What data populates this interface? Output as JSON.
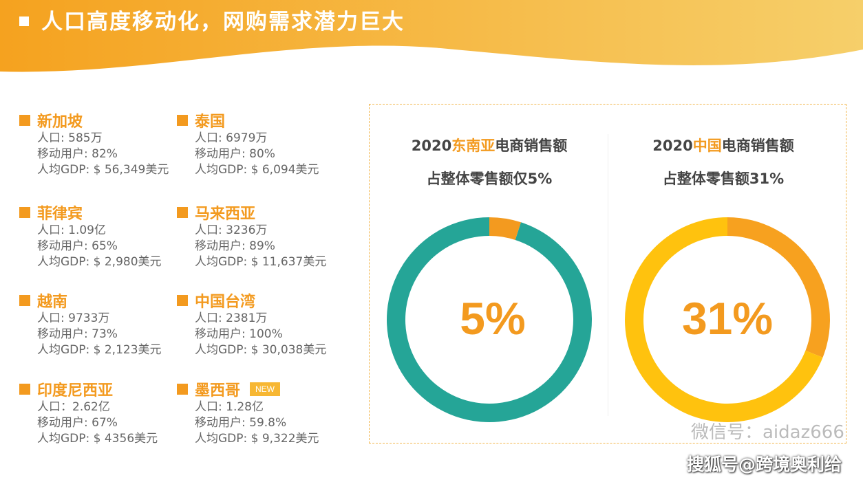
{
  "page": {
    "title": "人口高度移动化，网购需求潜力巨大"
  },
  "colors": {
    "accent": "#f39a1f",
    "teal": "#25a597",
    "yellow": "#ffc20e",
    "banner_left": "#f5a21f",
    "banner_right": "#f6cf6a"
  },
  "countries": [
    {
      "name": "新加坡",
      "population": "人口: 585万",
      "mobile": "移动用户: 82%",
      "gdp": "人均GDP: $ 56,349美元"
    },
    {
      "name": "泰国",
      "population": "人口: 6979万",
      "mobile": "移动用户: 80%",
      "gdp": "人均GDP: $ 6,094美元"
    },
    {
      "name": "菲律宾",
      "population": "人口: 1.09亿",
      "mobile": "移动用户: 65%",
      "gdp": "人均GDP: $ 2,980美元"
    },
    {
      "name": "马来西亚",
      "population": "人口: 3236万",
      "mobile": "移动用户: 89%",
      "gdp": "人均GDP: $ 11,637美元"
    },
    {
      "name": "越南",
      "population": "人口: 9733万",
      "mobile": "移动用户: 73%",
      "gdp": "人均GDP: $ 2,123美元"
    },
    {
      "name": "中国台湾",
      "population": "人口: 2381万",
      "mobile": "移动用户: 100%",
      "gdp": "人均GDP: $ 30,038美元"
    },
    {
      "name": "印度尼西亚",
      "population": "人口：2.62亿",
      "mobile": "移动用户: 67%",
      "gdp": "人均GDP: $ 4356美元"
    },
    {
      "name": "墨西哥",
      "badge": "NEW",
      "population": "人口: 1.28亿",
      "mobile": "移动用户: 59.8%",
      "gdp": "人均GDP: $ 9,322美元"
    }
  ],
  "chart_data": [
    {
      "type": "pie",
      "title_line1_prefix": "2020",
      "title_line1_highlight": "东南亚",
      "title_line1_suffix": "电商销售额",
      "title_line2": "占整体零售额仅5%",
      "center_label": "5%",
      "slices": [
        {
          "value": 5,
          "color": "#f39a1f"
        },
        {
          "value": 95,
          "color": "#25a597"
        }
      ]
    },
    {
      "type": "pie",
      "title_line1_prefix": "2020",
      "title_line1_highlight": "中国",
      "title_line1_suffix": "电商销售额",
      "title_line2": "占整体零售额31%",
      "center_label": "31%",
      "slices": [
        {
          "value": 31,
          "color": "#f7a11f"
        },
        {
          "value": 69,
          "color": "#ffc20e"
        }
      ]
    }
  ],
  "watermarks": {
    "wechat": "微信号：aidaz666",
    "sohu": "搜狐号@跨境奥利给"
  }
}
